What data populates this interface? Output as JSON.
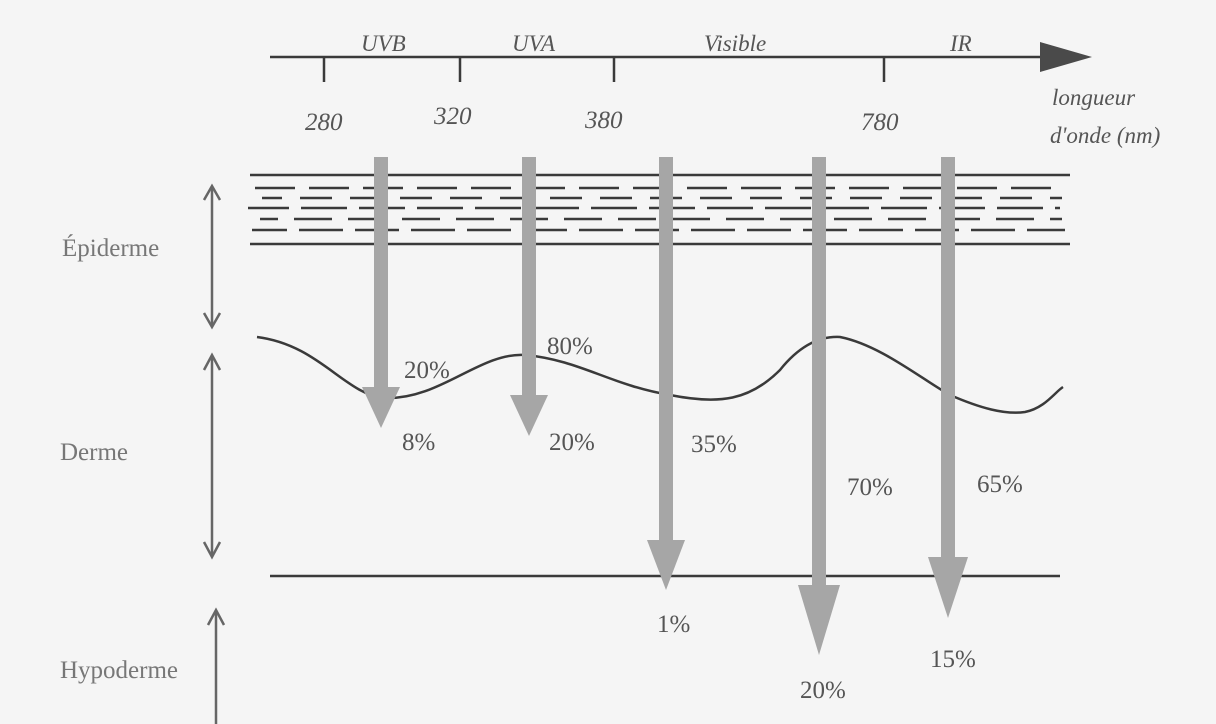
{
  "spectrum": {
    "bands": [
      "UVB",
      "UVA",
      "Visible",
      "IR"
    ],
    "ticks": [
      "280",
      "320",
      "380",
      "780"
    ],
    "axis_label_line1": "longueur",
    "axis_label_line2": "d'onde (nm)"
  },
  "layers": {
    "epidermis": "Épiderme",
    "dermis": "Derme",
    "hypodermis": "Hypoderme"
  },
  "penetration": [
    {
      "band": "UVB",
      "at_junction": "20%",
      "in_dermis": "8%"
    },
    {
      "band": "UVA",
      "at_junction": "80%",
      "in_dermis": "20%"
    },
    {
      "band": "Visible (short)",
      "in_dermis": "35%",
      "in_hypodermis": "1%"
    },
    {
      "band": "Visible (long)",
      "in_dermis": "70%",
      "in_hypodermis": "20%"
    },
    {
      "band": "IR",
      "in_dermis": "65%",
      "in_hypodermis": "15%"
    }
  ],
  "colors": {
    "background": "#f5f5f5",
    "line": "#3a3a3a",
    "ray": "#a6a6a6",
    "layer_arrow": "#666666",
    "text": "#555555"
  }
}
